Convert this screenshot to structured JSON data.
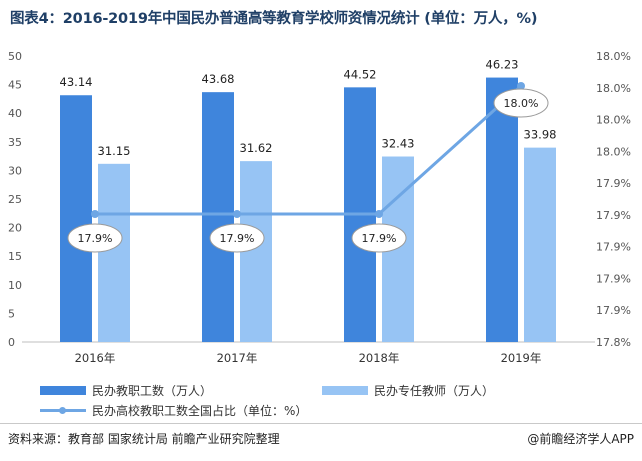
{
  "title": "图表4：2016-2019年中国民办普通高等教育学校师资情况统计 (单位：万人，%)",
  "source": "资料来源：教育部 国家统计局 前瞻产业研究院整理",
  "brand": "@前瞻经济学人APP",
  "colors": {
    "bar1": "#3f85dc",
    "bar2": "#97c4f4",
    "line": "#6ea6e4"
  },
  "chart_data": {
    "type": "bar",
    "categories": [
      "2016年",
      "2017年",
      "2018年",
      "2019年"
    ],
    "series": [
      {
        "name": "民办教职工数（万人）",
        "type": "bar",
        "axis": "left",
        "values": [
          43.14,
          43.68,
          44.52,
          46.23
        ],
        "labels": [
          "43.14",
          "43.68",
          "44.52",
          "46.23"
        ]
      },
      {
        "name": "民办专任教师（万人）",
        "type": "bar",
        "axis": "left",
        "values": [
          31.15,
          31.62,
          32.43,
          33.98
        ],
        "labels": [
          "31.15",
          "31.62",
          "32.43",
          "33.98"
        ]
      },
      {
        "name": "民办高校教职工数全国占比（单位：%）",
        "type": "line",
        "axis": "right",
        "values": [
          17.9,
          17.9,
          17.9,
          18.0
        ],
        "labels": [
          "17.9%",
          "17.9%",
          "17.9%",
          "18.0%"
        ]
      }
    ],
    "yaxis_left": {
      "min": 0,
      "max": 50,
      "step": 5,
      "ticks": [
        "0",
        "5",
        "10",
        "15",
        "20",
        "25",
        "30",
        "35",
        "40",
        "45",
        "50"
      ]
    },
    "yaxis_right": {
      "ticks": [
        "17.8%",
        "17.9%",
        "17.9%",
        "17.9%",
        "17.9%",
        "17.9%",
        "18.0%",
        "18.0%",
        "18.0%",
        "18.0%"
      ]
    },
    "legend_position": "bottom"
  }
}
